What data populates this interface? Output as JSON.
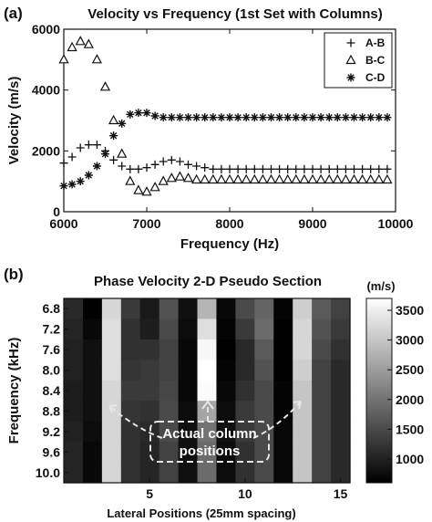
{
  "panel_a_label": "(a)",
  "panel_b_label": "(b)",
  "chart_data": [
    {
      "type": "scatter",
      "title": "Velocity vs Frequency (1st Set with Columns)",
      "xlabel": "Frequency (Hz)",
      "ylabel": "Velocity (m/s)",
      "xlim": [
        6000,
        10000
      ],
      "ylim": [
        0,
        6000
      ],
      "xticks": [
        6000,
        7000,
        8000,
        9000,
        10000
      ],
      "yticks": [
        0,
        2000,
        4000,
        6000
      ],
      "legend_position": "top-right",
      "series": [
        {
          "name": "A-B",
          "marker": "plus",
          "x": [
            6000,
            6100,
            6200,
            6300,
            6400,
            6500,
            6600,
            6700,
            6800,
            6900,
            7000,
            7100,
            7200,
            7300,
            7400,
            7500,
            7600,
            7700,
            7800,
            7900,
            8000,
            8100,
            8200,
            8300,
            8400,
            8500,
            8600,
            8700,
            8800,
            8900,
            9000,
            9100,
            9200,
            9300,
            9400,
            9500,
            9600,
            9700,
            9800,
            9900
          ],
          "y": [
            1600,
            1800,
            2100,
            2200,
            2200,
            2000,
            1700,
            1500,
            1400,
            1400,
            1450,
            1550,
            1650,
            1700,
            1650,
            1550,
            1500,
            1450,
            1400,
            1400,
            1400,
            1400,
            1400,
            1400,
            1400,
            1400,
            1400,
            1400,
            1400,
            1400,
            1400,
            1400,
            1400,
            1400,
            1400,
            1400,
            1400,
            1400,
            1400,
            1400
          ]
        },
        {
          "name": "B-C",
          "marker": "triangle",
          "x": [
            6000,
            6100,
            6200,
            6300,
            6400,
            6500,
            6600,
            6700,
            6800,
            6900,
            7000,
            7100,
            7200,
            7300,
            7400,
            7500,
            7600,
            7700,
            7800,
            7900,
            8000,
            8100,
            8200,
            8300,
            8400,
            8500,
            8600,
            8700,
            8800,
            8900,
            9000,
            9100,
            9200,
            9300,
            9400,
            9500,
            9600,
            9700,
            9800,
            9900
          ],
          "y": [
            5000,
            5400,
            5600,
            5500,
            5000,
            4100,
            3000,
            1900,
            1000,
            700,
            650,
            800,
            1000,
            1100,
            1150,
            1100,
            1050,
            1050,
            1050,
            1050,
            1050,
            1050,
            1050,
            1050,
            1050,
            1050,
            1050,
            1050,
            1050,
            1050,
            1050,
            1050,
            1050,
            1050,
            1050,
            1050,
            1050,
            1050,
            1050,
            1050
          ]
        },
        {
          "name": "C-D",
          "marker": "star",
          "x": [
            6000,
            6100,
            6200,
            6300,
            6400,
            6500,
            6600,
            6700,
            6800,
            6900,
            7000,
            7100,
            7200,
            7300,
            7400,
            7500,
            7600,
            7700,
            7800,
            7900,
            8000,
            8100,
            8200,
            8300,
            8400,
            8500,
            8600,
            8700,
            8800,
            8900,
            9000,
            9100,
            9200,
            9300,
            9400,
            9500,
            9600,
            9700,
            9800,
            9900
          ],
          "y": [
            850,
            900,
            1000,
            1200,
            1500,
            1900,
            2500,
            2900,
            3200,
            3250,
            3250,
            3150,
            3100,
            3100,
            3100,
            3100,
            3100,
            3100,
            3100,
            3100,
            3100,
            3100,
            3100,
            3100,
            3100,
            3100,
            3100,
            3100,
            3100,
            3100,
            3100,
            3100,
            3100,
            3100,
            3100,
            3100,
            3100,
            3100,
            3100,
            3100
          ]
        }
      ]
    },
    {
      "type": "heatmap",
      "title": "Phase Velocity 2-D Pseudo Section",
      "xlabel": "Lateral Positions (25mm spacing)",
      "ylabel": "Frequency (kHz)",
      "x_ticks": [
        5,
        10,
        15
      ],
      "y_ticks": [
        "6.8",
        "7.2",
        "7.6",
        "8.0",
        "8.4",
        "8.8",
        "9.2",
        "9.6",
        "10.0"
      ],
      "y_range": [
        6.8,
        10.0
      ],
      "x_range": [
        0.5,
        16
      ],
      "colorbar_label": "(m/s)",
      "colorbar_ticks": [
        1000,
        1500,
        2000,
        2500,
        3000,
        3500
      ],
      "color_range": [
        600,
        3700
      ],
      "colormap": "gray",
      "annotation": [
        "Actual column",
        "positions"
      ],
      "column_positions": [
        3,
        8,
        13
      ],
      "columns": [
        [
          1100,
          1050,
          1000,
          1000,
          950,
          950,
          1000,
          1050,
          1050
        ],
        [
          600,
          700,
          800,
          800,
          800,
          800,
          750,
          700,
          700
        ],
        [
          3200,
          3300,
          3300,
          3300,
          3200,
          3200,
          3200,
          3200,
          3200
        ],
        [
          1300,
          1200,
          1200,
          1250,
          1300,
          1250,
          1200,
          1200,
          1200
        ],
        [
          900,
          950,
          1200,
          1300,
          1300,
          1200,
          1100,
          1050,
          1050
        ],
        [
          1600,
          1500,
          1400,
          1400,
          1450,
          1500,
          1500,
          1400,
          1400
        ],
        [
          800,
          750,
          700,
          700,
          700,
          750,
          800,
          800,
          800
        ],
        [
          2800,
          3300,
          3600,
          3700,
          3650,
          2600,
          2000,
          1900,
          1900
        ],
        [
          700,
          650,
          600,
          650,
          700,
          750,
          800,
          750,
          750
        ],
        [
          1500,
          1300,
          1100,
          1100,
          1200,
          1300,
          1300,
          1200,
          1200
        ],
        [
          1800,
          1900,
          1700,
          1600,
          1500,
          1500,
          1500,
          1500,
          1500
        ],
        [
          650,
          600,
          600,
          600,
          650,
          650,
          700,
          700,
          700
        ],
        [
          3100,
          3200,
          3200,
          3100,
          3000,
          3000,
          3000,
          3000,
          3000
        ],
        [
          1700,
          1600,
          1500,
          1400,
          1400,
          1400,
          1400,
          1400,
          1400
        ],
        [
          1400,
          1300,
          1200,
          1100,
          1100,
          1100,
          1100,
          1100,
          1100
        ]
      ]
    }
  ]
}
